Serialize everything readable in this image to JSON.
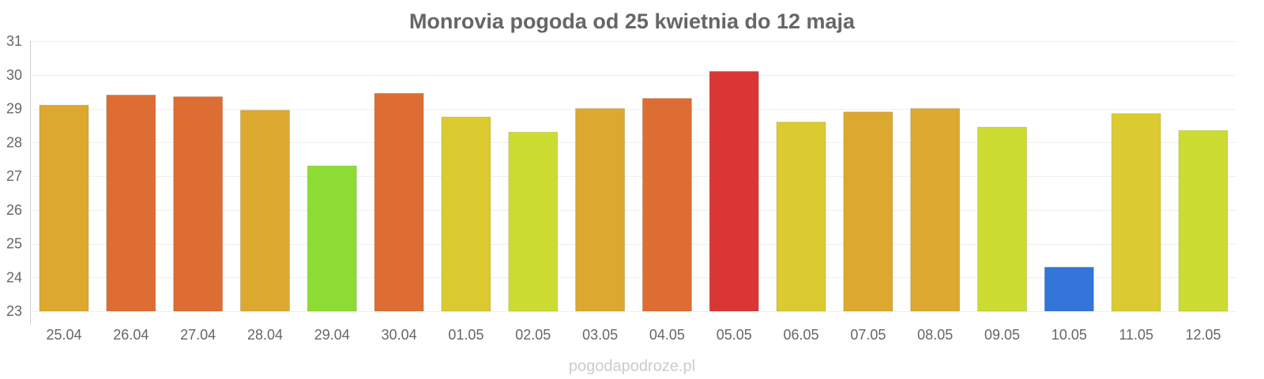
{
  "chart_data": {
    "type": "bar",
    "title": "Monrovia pogoda od 25 kwietnia do 12 maja",
    "xlabel": "",
    "ylabel": "",
    "ylim": [
      23,
      31
    ],
    "yticks": [
      23,
      24,
      25,
      26,
      27,
      28,
      29,
      30,
      31
    ],
    "grid": true,
    "categories": [
      "25.04",
      "26.04",
      "27.04",
      "28.04",
      "29.04",
      "30.04",
      "01.05",
      "02.05",
      "03.05",
      "04.05",
      "05.05",
      "06.05",
      "07.05",
      "08.05",
      "09.05",
      "10.05",
      "11.05",
      "12.05"
    ],
    "values": [
      29.1,
      29.4,
      29.35,
      28.95,
      27.3,
      29.45,
      28.75,
      28.3,
      29.0,
      29.3,
      30.1,
      28.6,
      28.9,
      29.0,
      28.45,
      24.3,
      28.85,
      28.35
    ],
    "colors": [
      "#dca830",
      "#dd6d32",
      "#dd6d32",
      "#dca830",
      "#8cdc34",
      "#dd6d32",
      "#dccb30",
      "#cddc33",
      "#dca830",
      "#dd6d32",
      "#dc3535",
      "#dccb30",
      "#dca830",
      "#dca830",
      "#cddc33",
      "#3375d9",
      "#dccb30",
      "#cddc33"
    ]
  },
  "watermark": "pogodapodroze.pl"
}
